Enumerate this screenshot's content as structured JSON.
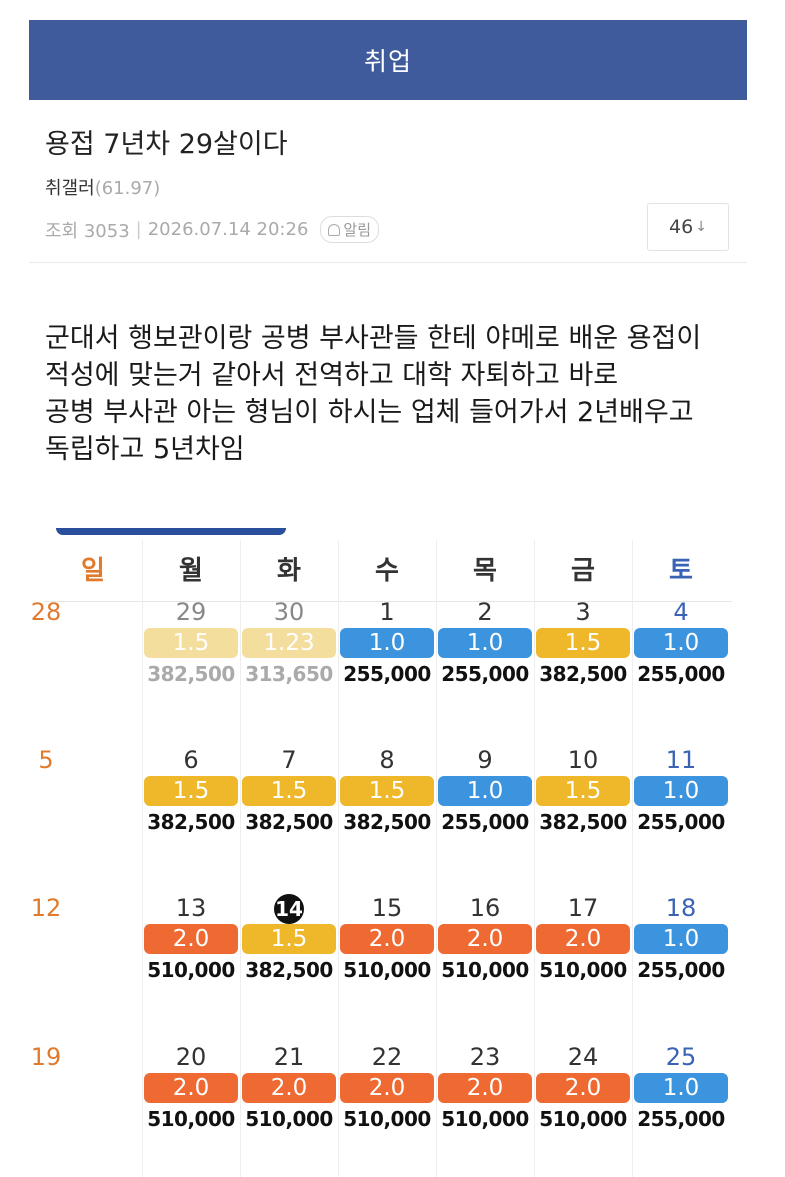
{
  "header": {
    "title": "취업"
  },
  "post": {
    "title": "용접 7년차 29살이다",
    "author": "취갤러",
    "author_score": "(61.97)",
    "views_label": "조회 3053",
    "datetime": "2026.07.14 20:26",
    "alarm_label": "알림",
    "comment_count": "46",
    "comment_arrow": "↓",
    "body_lines": [
      "군대서 행보관이랑 공병 부사관들 한테 야메로 배운 용접이",
      "적성에 맞는거 같아서 전역하고 대학 자퇴하고 바로",
      "공병 부사관 아는 형님이 하시는 업체 들어가서 2년배우고",
      "독립하고 5년차임"
    ]
  },
  "calendar": {
    "colors": {
      "high": "#ef6a32",
      "mid": "#efb82a",
      "low": "#3c93de",
      "mid_faded": "#f3de9e"
    },
    "weekdays": [
      "일",
      "월",
      "화",
      "수",
      "목",
      "금",
      "토"
    ],
    "weeks": [
      {
        "sunday": "28",
        "days": [
          {
            "day": "29",
            "rate": "1.5",
            "level": "mid_faded",
            "amount": "382,500",
            "faded": true
          },
          {
            "day": "30",
            "rate": "1.23",
            "level": "mid_faded",
            "amount": "313,650",
            "faded": true
          },
          {
            "day": "1",
            "rate": "1.0",
            "level": "low",
            "amount": "255,000"
          },
          {
            "day": "2",
            "rate": "1.0",
            "level": "low",
            "amount": "255,000"
          },
          {
            "day": "3",
            "rate": "1.5",
            "level": "mid",
            "amount": "382,500"
          },
          {
            "day": "4",
            "rate": "1.0",
            "level": "low",
            "amount": "255,000"
          }
        ]
      },
      {
        "sunday": "5",
        "days": [
          {
            "day": "6",
            "rate": "1.5",
            "level": "mid",
            "amount": "382,500"
          },
          {
            "day": "7",
            "rate": "1.5",
            "level": "mid",
            "amount": "382,500"
          },
          {
            "day": "8",
            "rate": "1.5",
            "level": "mid",
            "amount": "382,500"
          },
          {
            "day": "9",
            "rate": "1.0",
            "level": "low",
            "amount": "255,000"
          },
          {
            "day": "10",
            "rate": "1.5",
            "level": "mid",
            "amount": "382,500"
          },
          {
            "day": "11",
            "rate": "1.0",
            "level": "low",
            "amount": "255,000"
          }
        ]
      },
      {
        "sunday": "12",
        "days": [
          {
            "day": "13",
            "rate": "2.0",
            "level": "high",
            "amount": "510,000"
          },
          {
            "day": "14",
            "rate": "1.5",
            "level": "mid",
            "amount": "382,500",
            "today": true
          },
          {
            "day": "15",
            "rate": "2.0",
            "level": "high",
            "amount": "510,000"
          },
          {
            "day": "16",
            "rate": "2.0",
            "level": "high",
            "amount": "510,000"
          },
          {
            "day": "17",
            "rate": "2.0",
            "level": "high",
            "amount": "510,000"
          },
          {
            "day": "18",
            "rate": "1.0",
            "level": "low",
            "amount": "255,000"
          }
        ]
      },
      {
        "sunday": "19",
        "days": [
          {
            "day": "20",
            "rate": "2.0",
            "level": "high",
            "amount": "510,000"
          },
          {
            "day": "21",
            "rate": "2.0",
            "level": "high",
            "amount": "510,000"
          },
          {
            "day": "22",
            "rate": "2.0",
            "level": "high",
            "amount": "510,000"
          },
          {
            "day": "23",
            "rate": "2.0",
            "level": "high",
            "amount": "510,000"
          },
          {
            "day": "24",
            "rate": "2.0",
            "level": "high",
            "amount": "510,000"
          },
          {
            "day": "25",
            "rate": "1.0",
            "level": "low",
            "amount": "255,000"
          }
        ]
      }
    ]
  }
}
